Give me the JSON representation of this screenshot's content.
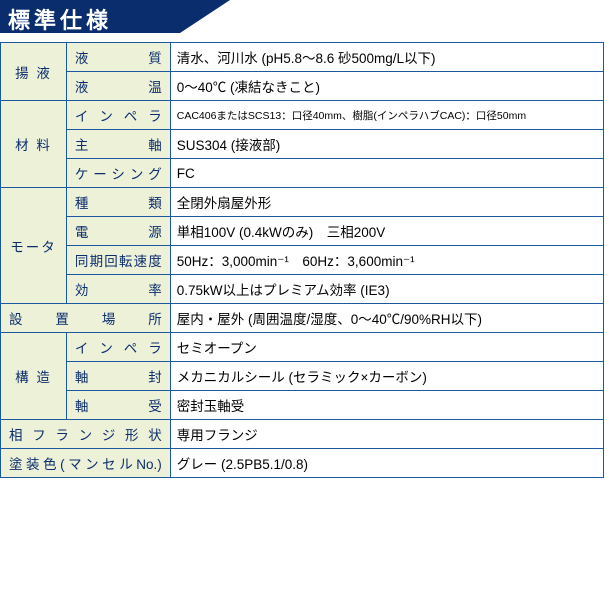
{
  "title": "標準仕様",
  "rows": [
    {
      "lbl1": "揚 液",
      "rs": 2,
      "lbl2": "液質",
      "val": "清水、河川水 (pH5.8～8.6 砂500mg/L以下)"
    },
    {
      "lbl2": "液温",
      "val": "0～40℃ (凍結なきこと)"
    },
    {
      "lbl1": "材 料",
      "rs": 3,
      "lbl2": "インペラ",
      "val": "CAC406またはSCS13：口径40mm、樹脂(インペラハブCAC)：口径50mm",
      "small": true
    },
    {
      "lbl2": "主軸",
      "val": "SUS304 (接液部)"
    },
    {
      "lbl2": "ケーシング",
      "val": "FC"
    },
    {
      "lbl1": "モータ",
      "rs": 4,
      "lbl2": "種類",
      "val": "全閉外扇屋外形"
    },
    {
      "lbl2": "電源",
      "val": "単相100V (0.4kWのみ)　三相200V"
    },
    {
      "lbl2": "同期回転速度",
      "val": "50Hz：3,000min⁻¹　60Hz：3,600min⁻¹"
    },
    {
      "lbl2": "効率",
      "val": "0.75kW以上はプレミアム効率 (IE3)"
    },
    {
      "full": "設 置 場 所",
      "val": "屋内・屋外 (周囲温度/湿度、0～40℃/90%RH以下)"
    },
    {
      "lbl1": "構 造",
      "rs": 3,
      "lbl2": "インペラ",
      "val": "セミオープン"
    },
    {
      "lbl2": "軸封",
      "val": "メカニカルシール (セラミック×カーボン)"
    },
    {
      "lbl2": "軸受",
      "val": "密封玉軸受"
    },
    {
      "full": "相フランジ形状",
      "val": "専用フランジ"
    },
    {
      "full": "塗装色(マンセルNo.)",
      "val": "グレー (2.5PB5.1/0.8)"
    }
  ],
  "layout": {
    "col1": 66,
    "col2": 104,
    "col3": 434
  }
}
